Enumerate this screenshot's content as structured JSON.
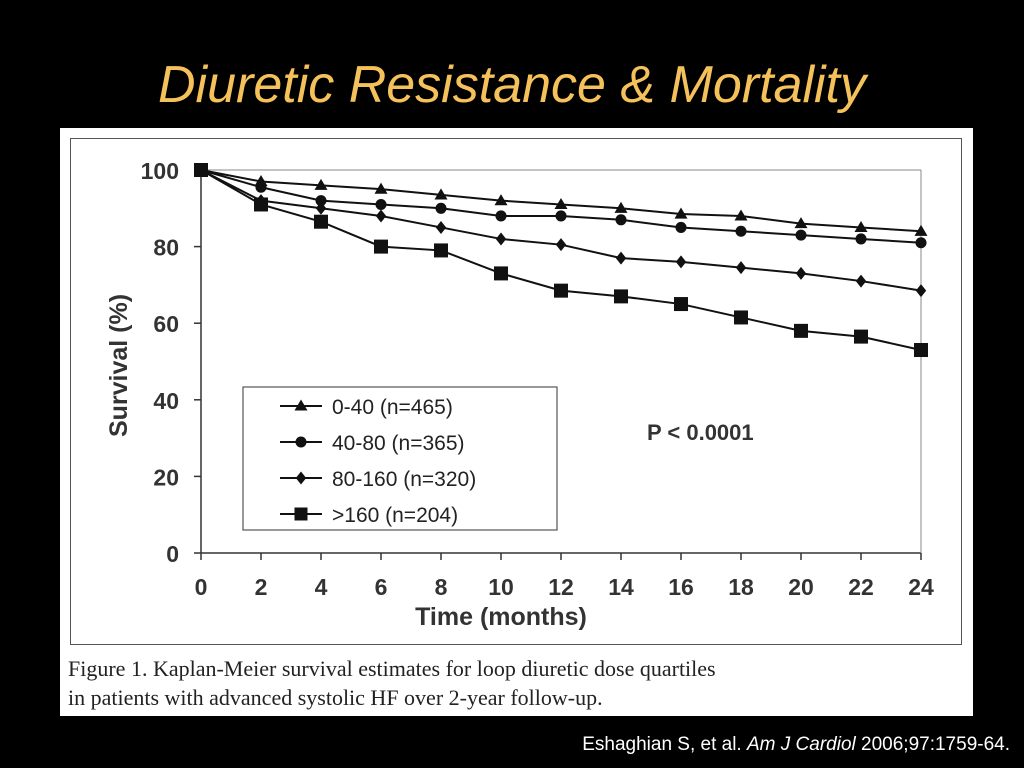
{
  "slide": {
    "title": "Diuretic Resistance & Mortality",
    "title_color": "#f5c15a",
    "background": "#000000"
  },
  "caption": {
    "line1": "Figure 1. Kaplan-Meier survival estimates for loop diuretic dose quartiles",
    "line2": "in patients with advanced systolic HF over 2-year follow-up."
  },
  "citation": {
    "authors": "Eshaghian S, et al.",
    "journal": "Am J Cardiol",
    "details": "2006;97:1759-64."
  },
  "chart_data": {
    "type": "line",
    "xlabel": "Time (months)",
    "ylabel": "Survival (%)",
    "xlim": [
      0,
      24
    ],
    "ylim": [
      0,
      100
    ],
    "x_ticks": [
      "0",
      "2",
      "4",
      "6",
      "8",
      "10",
      "12",
      "14",
      "16",
      "18",
      "20",
      "22",
      "24"
    ],
    "y_ticks": [
      "0",
      "20",
      "40",
      "60",
      "80",
      "100"
    ],
    "x": [
      0,
      2,
      4,
      6,
      8,
      10,
      12,
      14,
      16,
      18,
      20,
      22,
      24
    ],
    "grid": false,
    "legend_position": "lower-left",
    "annotation": "P < 0.0001",
    "series": [
      {
        "name": "0-40 (n=465)",
        "marker": "triangle",
        "values": [
          100,
          97,
          96,
          95,
          93.5,
          92,
          91,
          90,
          88.5,
          88,
          86,
          85,
          84
        ]
      },
      {
        "name": "40-80 (n=365)",
        "marker": "circle",
        "values": [
          100,
          95.5,
          92,
          91,
          90,
          88,
          88,
          87,
          85,
          84,
          83,
          82,
          81
        ]
      },
      {
        "name": "80-160 (n=320)",
        "marker": "diamond",
        "values": [
          100,
          92,
          90,
          88,
          85,
          82,
          80.5,
          77,
          76,
          74.5,
          73,
          71,
          68.5
        ]
      },
      {
        "name": ">160 (n=204)",
        "marker": "square",
        "values": [
          100,
          91,
          86.5,
          80,
          79,
          73,
          68.5,
          67,
          65,
          61.5,
          58,
          56.5,
          53
        ]
      }
    ]
  }
}
